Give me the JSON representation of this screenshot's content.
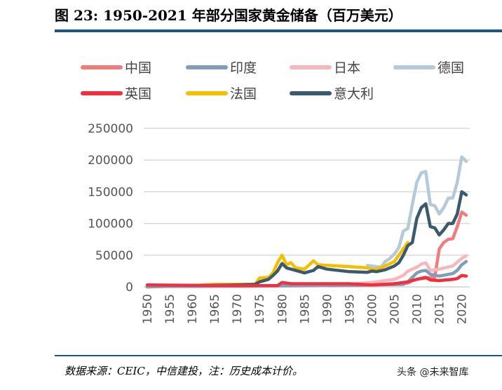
{
  "title": "图 23: 1950-2021 年部分国家黄金储备（百万美元）",
  "source": "数据来源：CEIC，中信建投，注：历史成本计价。",
  "watermark": "头条 @未来智库",
  "chart_data": {
    "type": "line",
    "title": "图 23: 1950-2021 年部分国家黄金储备（百万美元）",
    "xlabel": "",
    "ylabel": "",
    "xlim": [
      1950,
      2021
    ],
    "ylim": [
      0,
      250000
    ],
    "y_ticks": [
      "0",
      "50000",
      "100000",
      "150000",
      "200000",
      "250000"
    ],
    "x_ticks": [
      "1950",
      "1955",
      "1960",
      "1965",
      "1970",
      "1975",
      "1980",
      "1985",
      "1990",
      "1995",
      "2000",
      "2005",
      "2010",
      "2015",
      "2020"
    ],
    "grid": "horizontal",
    "legend": "top",
    "series": [
      {
        "name": "中国",
        "color": "#F27B7D",
        "x": [
          1950,
          1960,
          1970,
          1980,
          1990,
          2000,
          2005,
          2008,
          2009,
          2010,
          2012,
          2014,
          2015,
          2016,
          2017,
          2018,
          2019,
          2020,
          2021
        ],
        "y": [
          1000,
          1000,
          1000,
          1500,
          2000,
          3000,
          5000,
          6000,
          10000,
          12000,
          14000,
          15000,
          60000,
          70000,
          75000,
          76000,
          95000,
          118000,
          113000
        ]
      },
      {
        "name": "印度",
        "color": "#7F9EB8",
        "x": [
          1950,
          1960,
          1970,
          1980,
          1990,
          2000,
          2007,
          2008,
          2009,
          2010,
          2011,
          2012,
          2013,
          2015,
          2018,
          2019,
          2020,
          2021
        ],
        "y": [
          1000,
          1000,
          1500,
          2000,
          2500,
          3000,
          4000,
          8000,
          15000,
          22000,
          25000,
          26000,
          20000,
          17000,
          21000,
          26000,
          35000,
          40000
        ]
      },
      {
        "name": "日本",
        "color": "#F8B7BB",
        "x": [
          1950,
          1960,
          1970,
          1980,
          1990,
          2000,
          2005,
          2007,
          2008,
          2010,
          2011,
          2012,
          2013,
          2015,
          2018,
          2020,
          2021
        ],
        "y": [
          500,
          500,
          1000,
          1500,
          2000,
          7000,
          12000,
          18000,
          25000,
          31000,
          36000,
          38000,
          26000,
          28000,
          33000,
          45000,
          49000
        ]
      },
      {
        "name": "德国",
        "color": "#B5C9D8",
        "x": [
          1999,
          2000,
          2001,
          2002,
          2003,
          2004,
          2005,
          2006,
          2007,
          2008,
          2009,
          2010,
          2011,
          2012,
          2013,
          2014,
          2015,
          2016,
          2017,
          2018,
          2019,
          2020,
          2021
        ],
        "y": [
          34000,
          33000,
          32000,
          31000,
          40000,
          45000,
          52000,
          62000,
          88000,
          92000,
          130000,
          165000,
          180000,
          182000,
          130000,
          128000,
          115000,
          125000,
          140000,
          140000,
          165000,
          205000,
          198000
        ]
      },
      {
        "name": "英国",
        "color": "#F03040",
        "x": [
          1950,
          1960,
          1970,
          1979,
          1980,
          1982,
          1985,
          1990,
          1995,
          2000,
          2005,
          2008,
          2010,
          2012,
          2013,
          2015,
          2018,
          2019,
          2020,
          2021
        ],
        "y": [
          3000,
          2500,
          2000,
          2000,
          7000,
          5000,
          5000,
          5000,
          5000,
          3000,
          5000,
          8000,
          12000,
          15000,
          11000,
          10000,
          12000,
          13000,
          18000,
          17000
        ]
      },
      {
        "name": "法国",
        "color": "#F5BE00",
        "x": [
          1950,
          1960,
          1965,
          1970,
          1974,
          1975,
          1977,
          1978,
          1979,
          1980,
          1981,
          1982,
          1983,
          1985,
          1987,
          1988,
          1990,
          1995,
          1999,
          2000,
          2001,
          2003,
          2005,
          2007,
          2008
        ],
        "y": [
          1000,
          2000,
          4000,
          4000,
          4000,
          14000,
          15000,
          22000,
          38000,
          50000,
          35000,
          38000,
          30000,
          28000,
          41000,
          35000,
          34000,
          32000,
          30000,
          28000,
          28000,
          33000,
          40000,
          60000,
          70000
        ]
      },
      {
        "name": "意大利",
        "color": "#3B5A6E",
        "x": [
          1950,
          1960,
          1970,
          1974,
          1975,
          1977,
          1978,
          1979,
          1980,
          1981,
          1983,
          1985,
          1987,
          1988,
          1990,
          1995,
          1999,
          2000,
          2001,
          2003,
          2005,
          2006,
          2007,
          2008,
          2009,
          2010,
          2011,
          2012,
          2013,
          2014,
          2015,
          2016,
          2017,
          2018,
          2019,
          2020,
          2021
        ],
        "y": [
          0,
          2000,
          3000,
          4000,
          8000,
          12000,
          18000,
          25000,
          37000,
          30000,
          26000,
          22000,
          26000,
          32000,
          28000,
          24000,
          23000,
          25000,
          24000,
          27000,
          33000,
          38000,
          50000,
          65000,
          70000,
          108000,
          125000,
          131000,
          95000,
          93000,
          82000,
          90000,
          100000,
          100000,
          115000,
          150000,
          145000
        ]
      }
    ]
  }
}
